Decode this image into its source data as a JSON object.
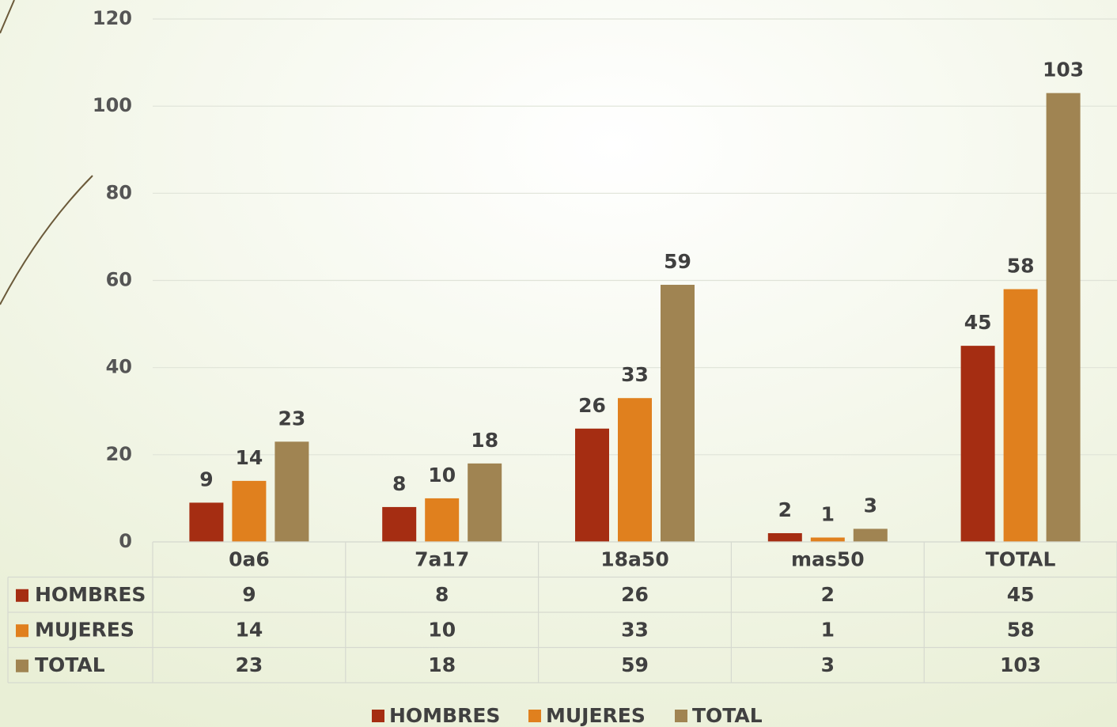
{
  "chart_data": {
    "type": "bar",
    "categories": [
      "0a6",
      "7a17",
      "18a50",
      "mas50",
      "TOTAL"
    ],
    "series": [
      {
        "name": "HOMBRES",
        "color": "#a52d12",
        "values": [
          9,
          8,
          26,
          2,
          45
        ]
      },
      {
        "name": "MUJERES",
        "color": "#e0801e",
        "values": [
          14,
          10,
          33,
          1,
          58
        ]
      },
      {
        "name": "TOTAL",
        "color": "#a08452",
        "values": [
          23,
          18,
          59,
          3,
          103
        ]
      }
    ],
    "ylim": [
      0,
      120
    ],
    "yticks": [
      0,
      20,
      40,
      60,
      80,
      100,
      120
    ],
    "grid": true,
    "legend": "bottom",
    "data_table": true
  }
}
